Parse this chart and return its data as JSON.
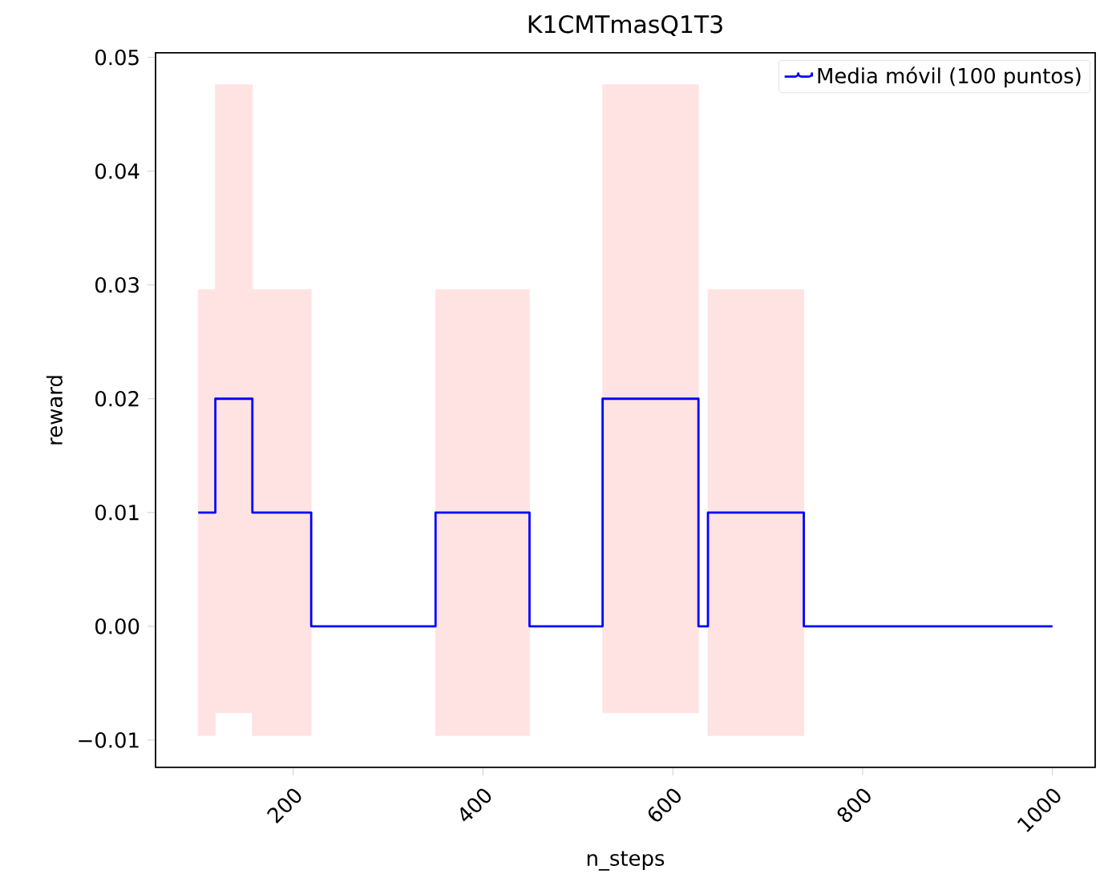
{
  "chart_data": {
    "type": "step",
    "title": "K1CMTmasQ1T3",
    "xlabel": "n_steps",
    "ylabel": "reward",
    "series": [
      {
        "name": "Media móvil (100 puntos)",
        "color": "#0000ff",
        "x": [
          100,
          118,
          157,
          219,
          350,
          449,
          526,
          627,
          637,
          738,
          1000
        ],
        "values": [
          0.01,
          0.02,
          0.01,
          0,
          0.01,
          0,
          0.02,
          0,
          0.01,
          0,
          0
        ],
        "lower": [
          -0.0096,
          -0.0076,
          -0.0096,
          0,
          -0.0096,
          0,
          -0.0076,
          0,
          -0.0096,
          0,
          0
        ],
        "upper": [
          0.0296,
          0.0476,
          0.0296,
          0,
          0.0296,
          0,
          0.0476,
          0,
          0.0296,
          0,
          0
        ]
      }
    ],
    "xlim": [
      55,
      1045
    ],
    "ylim": [
      -0.0124,
      0.0504
    ],
    "xticks": [
      200,
      400,
      600,
      800,
      1000
    ],
    "yticks": [
      {
        "value": -0.01,
        "label": "−0.01"
      },
      {
        "value": 0,
        "label": "0.00"
      },
      {
        "value": 0.01,
        "label": "0.01"
      },
      {
        "value": 0.02,
        "label": "0.02"
      },
      {
        "value": 0.03,
        "label": "0.03"
      },
      {
        "value": 0.04,
        "label": "0.04"
      },
      {
        "value": 0.05,
        "label": "0.05"
      }
    ],
    "grid": false,
    "legend": "top right",
    "line_style": "solid",
    "marker": "none"
  }
}
